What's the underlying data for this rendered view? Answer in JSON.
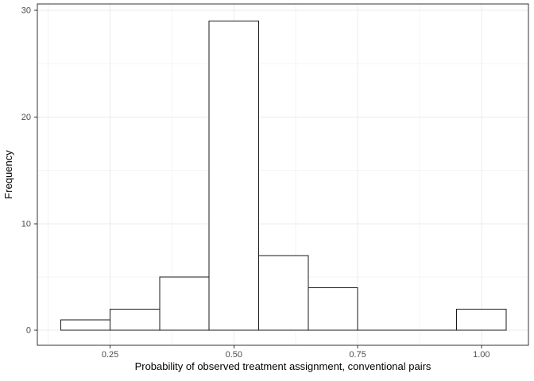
{
  "chart_data": {
    "type": "bar",
    "subtype": "histogram",
    "title": "",
    "xlabel": "Probability of observed treatment assignment, conventional pairs",
    "ylabel": "Frequency",
    "bin_edges": [
      0.15,
      0.25,
      0.35,
      0.45,
      0.55,
      0.65,
      0.75,
      0.85,
      0.95,
      1.05
    ],
    "counts": [
      1,
      2,
      5,
      29,
      7,
      4,
      0,
      0,
      2
    ],
    "total_observations": 50,
    "x_ticks": [
      0.25,
      0.5,
      0.75,
      1.0
    ],
    "x_tick_labels": [
      "0.25",
      "0.50",
      "0.75",
      "1.00"
    ],
    "y_ticks": [
      0,
      10,
      20,
      30
    ],
    "y_tick_labels": [
      "0",
      "10",
      "20",
      "30"
    ],
    "x_minor_gridlines": [
      0.125,
      0.375,
      0.625,
      0.875
    ],
    "y_minor_gridlines": [
      5,
      15,
      25
    ],
    "xlim": [
      0.103,
      1.095
    ],
    "ylim": [
      -1.4,
      30.6
    ],
    "grid": "on",
    "legend": "none",
    "colors": {
      "bar_fill": "#ffffff",
      "bar_stroke": "#1a1a1a",
      "panel_background": "#ffffff",
      "panel_border": "#333333",
      "grid_major": "#ebebeb",
      "grid_minor": "#f4f4f4",
      "tick_mark": "#333333",
      "tick_label_color": "#4d4d4d",
      "axis_title_color": "#000000",
      "figure_background": "#ffffff"
    }
  }
}
